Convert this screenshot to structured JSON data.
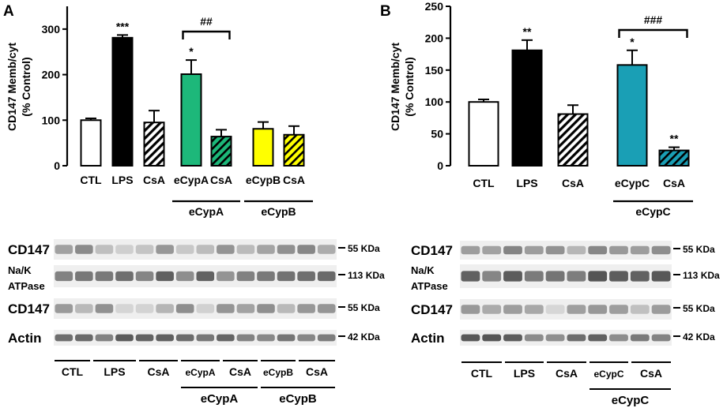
{
  "chart_data": [
    {
      "type": "bar",
      "panel": "A",
      "ylabel_lines": [
        "CD147 Memb/cyt",
        "(% Control)"
      ],
      "ylim": [
        0,
        350
      ],
      "yticks": [
        0,
        100,
        200,
        300
      ],
      "categories": [
        "CTL",
        "LPS",
        "CsA",
        "eCypA",
        "CsA",
        "eCypB",
        "CsA"
      ],
      "values": [
        100,
        281,
        95,
        201,
        64,
        81,
        68
      ],
      "errors": [
        4,
        6,
        26,
        31,
        15,
        15,
        19
      ],
      "fills": [
        "#ffffff",
        "#000000",
        "hatch-black",
        "#1db87a",
        "hatch-green",
        "#ffff00",
        "hatch-yellow"
      ],
      "stars": [
        "",
        "***",
        "",
        "*",
        "",
        "",
        ""
      ],
      "bracket": {
        "from": 3,
        "to": 4,
        "label": "##"
      },
      "groups": [
        {
          "label": "eCypA",
          "from": 3,
          "to": 4
        },
        {
          "label": "eCypB",
          "from": 5,
          "to": 6
        }
      ],
      "grid": false
    },
    {
      "type": "bar",
      "panel": "B",
      "ylabel_lines": [
        "CD147 Memb/cyt",
        "(% Control)"
      ],
      "ylim": [
        0,
        250
      ],
      "yticks": [
        0,
        50,
        100,
        150,
        200,
        250
      ],
      "categories": [
        "CTL",
        "LPS",
        "CsA",
        "eCypC",
        "CsA"
      ],
      "values": [
        100,
        181,
        81,
        158,
        24
      ],
      "errors": [
        4,
        16,
        14,
        23,
        5
      ],
      "fills": [
        "#ffffff",
        "#000000",
        "hatch-black",
        "#1a9fb5",
        "hatch-blue"
      ],
      "stars": [
        "",
        "**",
        "",
        "*",
        "**"
      ],
      "bracket": {
        "from": 3,
        "to": 4,
        "label": "###"
      },
      "groups": [
        {
          "label": "eCypC",
          "from": 3,
          "to": 4
        }
      ],
      "grid": false
    }
  ],
  "panel_letters": {
    "a": "A",
    "b": "B"
  },
  "blots": {
    "a": {
      "rows": [
        "CD147",
        "Na/K\nATPase",
        "CD147",
        "Actin"
      ],
      "sizes": [
        "55 KDa",
        "113 KDa",
        "55 KDa",
        "42 KDa"
      ],
      "lane_groups": [
        "CTL",
        "LPS",
        "CsA",
        "eCypA",
        "CsA",
        "eCypB",
        "CsA"
      ],
      "super_groups": [
        "eCypA",
        "eCypB"
      ]
    },
    "b": {
      "rows": [
        "CD147",
        "Na/K\nATPase",
        "CD147",
        "Actin"
      ],
      "sizes": [
        "55 KDa",
        "113 KDa",
        "55 KDa",
        "42 KDa"
      ],
      "lane_groups": [
        "CTL",
        "LPS",
        "CsA",
        "eCypC",
        "CsA"
      ],
      "super_groups": [
        "eCypC"
      ]
    }
  }
}
